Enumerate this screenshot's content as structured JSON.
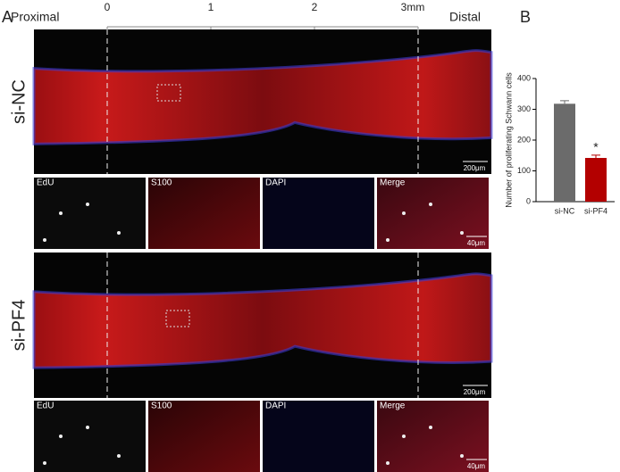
{
  "panel_a": {
    "label": "A",
    "proximal": "Proximal",
    "distal": "Distal",
    "scale_labels": [
      "0",
      "1",
      "2",
      "3mm"
    ],
    "rows": [
      {
        "group": "si-NC",
        "scale_bar": "200μm",
        "insets": [
          "EdU",
          "S100",
          "DAPI",
          "Merge"
        ],
        "inset_scale_bar": "40μm"
      },
      {
        "group": "si-PF4",
        "scale_bar": "200μm",
        "insets": [
          "EdU",
          "S100",
          "DAPI",
          "Merge"
        ],
        "inset_scale_bar": "40μm"
      }
    ]
  },
  "chart_data": {
    "type": "bar",
    "panel_label": "B",
    "y_label": "Number of proliferating Schwann cells",
    "categories": [
      "si-NC",
      "si-PF4"
    ],
    "values": [
      318,
      142
    ],
    "errors": [
      10,
      9
    ],
    "colors": [
      "#6b6b6b",
      "#b30000"
    ],
    "annotation": "*",
    "ylim": [
      0,
      400
    ],
    "yticks": [
      0,
      100,
      200,
      300,
      400
    ]
  }
}
